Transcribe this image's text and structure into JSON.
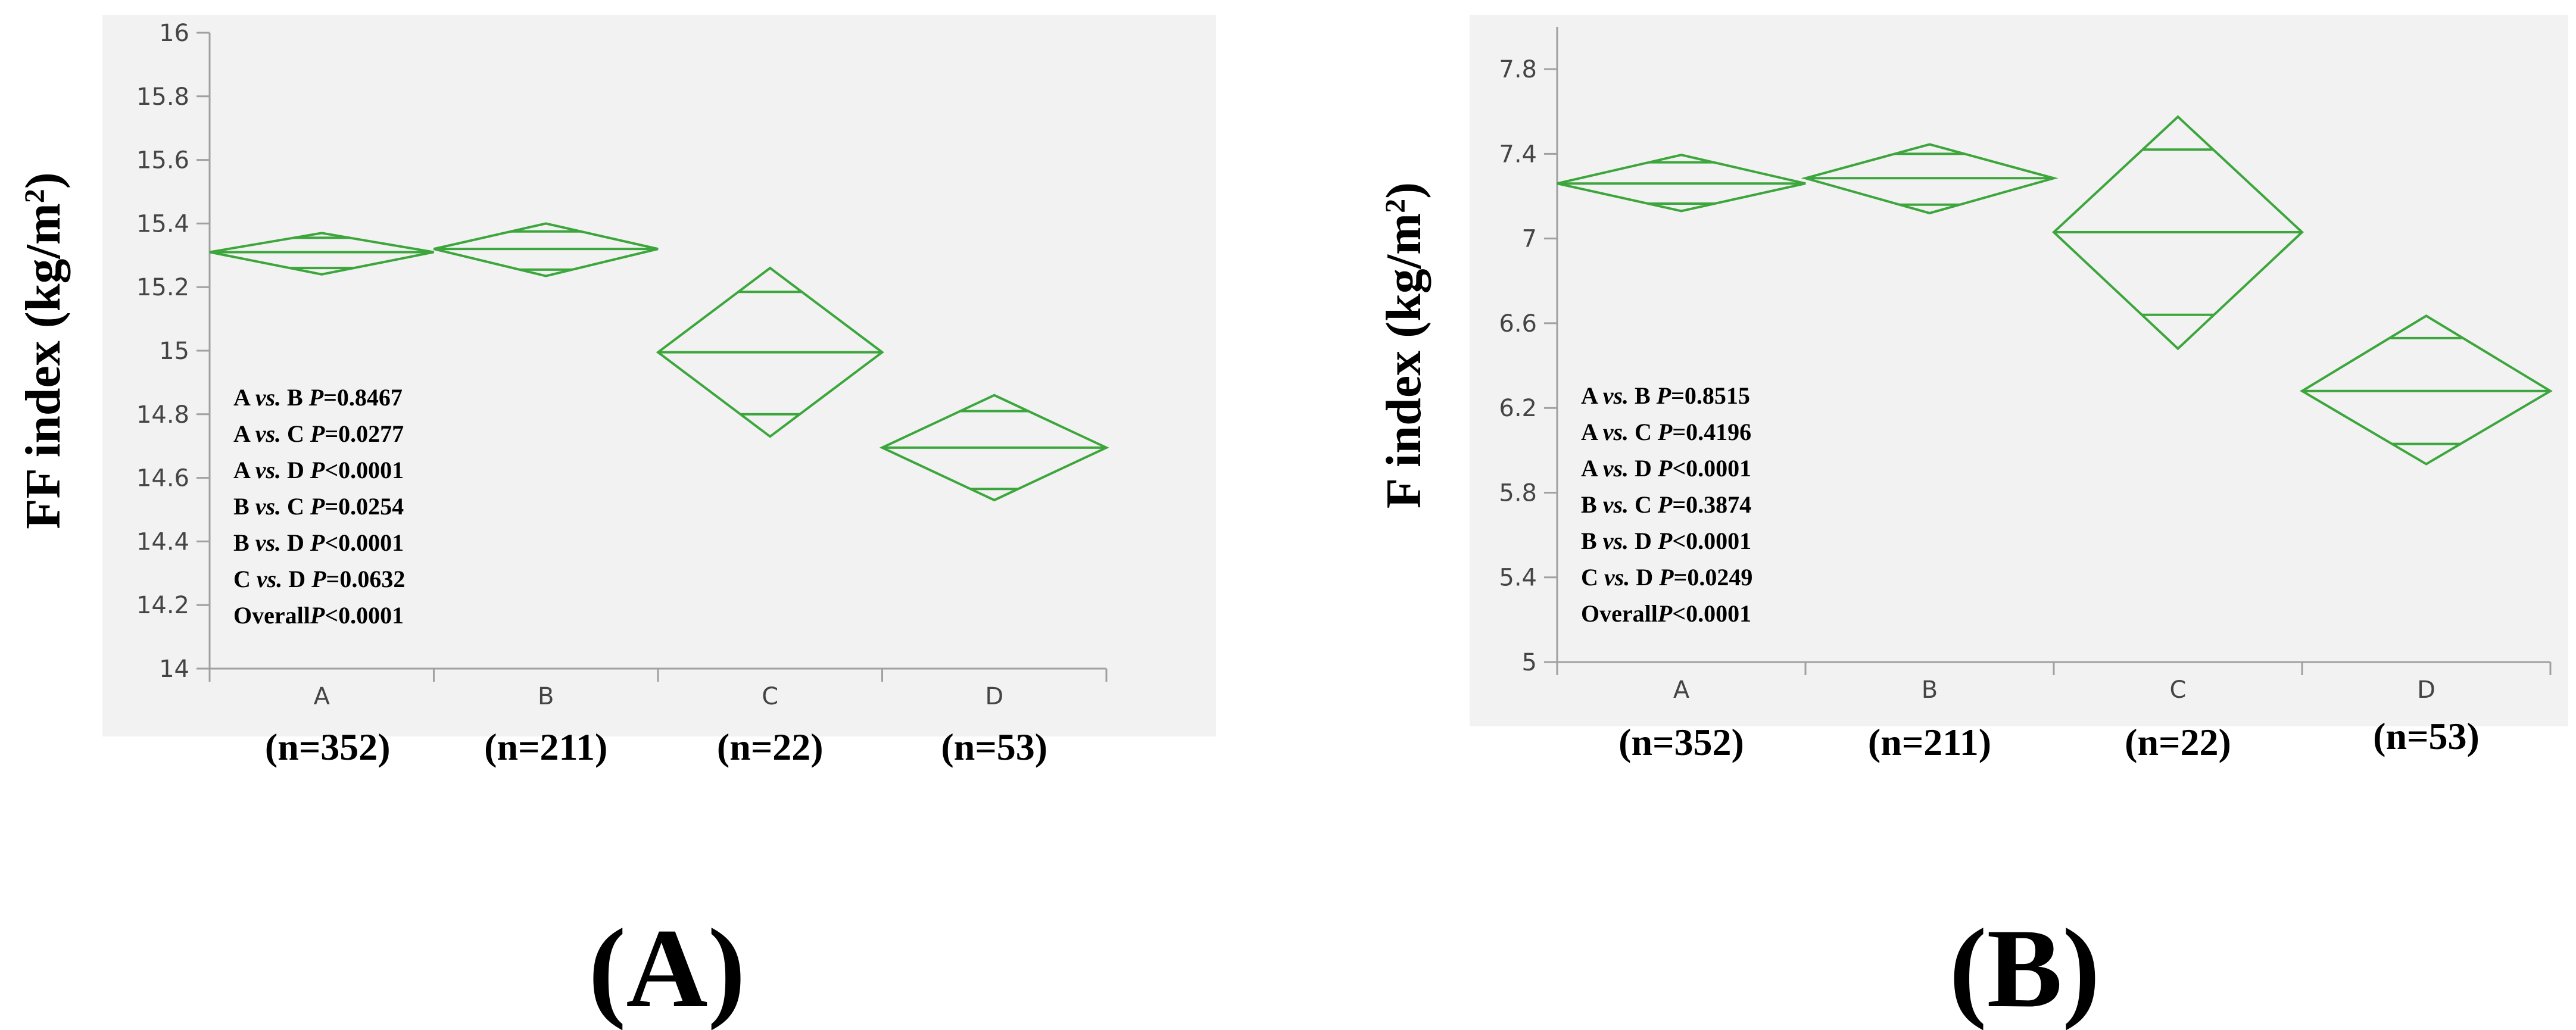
{
  "chart_data": [
    {
      "type": "diamond",
      "panel_label": "(A)",
      "ylabel_main": "FF index (kg/m",
      "ylabel_sup": "2",
      "ylabel_close": ")",
      "ylim": [
        14,
        16
      ],
      "yticks": [
        "14",
        "14.2",
        "14.4",
        "14.6",
        "14.8",
        "15",
        "15.2",
        "15.4",
        "15.6",
        "15.8",
        "16"
      ],
      "categories": [
        "A",
        "B",
        "C",
        "D"
      ],
      "n_labels": [
        "(n=352)",
        "(n=211)",
        "(n=22)",
        "(n=53)"
      ],
      "groups": [
        {
          "mean": 15.31,
          "ci_low": 15.24,
          "ci_high": 15.37,
          "inner_low": 15.26,
          "inner_high": 15.355
        },
        {
          "mean": 15.32,
          "ci_low": 15.235,
          "ci_high": 15.4,
          "inner_low": 15.255,
          "inner_high": 15.375
        },
        {
          "mean": 14.995,
          "ci_low": 14.73,
          "ci_high": 15.26,
          "inner_low": 14.8,
          "inner_high": 15.185
        },
        {
          "mean": 14.695,
          "ci_low": 14.53,
          "ci_high": 14.86,
          "inner_low": 14.565,
          "inner_high": 14.81
        }
      ],
      "comparisons": [
        {
          "pair": "A",
          "vs": "vs.",
          "pair2": "B",
          "p": "P",
          "val": "=0.8467"
        },
        {
          "pair": "A",
          "vs": "vs.",
          "pair2": "C",
          "p": "P",
          "val": "=0.0277"
        },
        {
          "pair": "A",
          "vs": "vs.",
          "pair2": "D",
          "p": "P",
          "val": "<0.0001"
        },
        {
          "pair": "B",
          "vs": "vs.",
          "pair2": "C",
          "p": "P",
          "val": "=0.0254"
        },
        {
          "pair": "B",
          "vs": "vs.",
          "pair2": "D",
          "p": "P",
          "val": "<0.0001"
        },
        {
          "pair": "C",
          "vs": "vs.",
          "pair2": "D",
          "p": "P",
          "val": "=0.0632"
        }
      ],
      "overall_prefix": "Overall",
      "overall_p": "P",
      "overall_val": "<0.0001"
    },
    {
      "type": "diamond",
      "panel_label": "(B)",
      "ylabel_main": "F index (kg/m",
      "ylabel_sup": "2",
      "ylabel_close": ")",
      "ylim": [
        5,
        8
      ],
      "yticks": [
        "5",
        "5.4",
        "5.8",
        "6.2",
        "6.6",
        "7",
        "7.4",
        "7.8"
      ],
      "categories": [
        "A",
        "B",
        "C",
        "D"
      ],
      "n_labels": [
        "(n=352)",
        "(n=211)",
        "(n=22)",
        "(n=53)"
      ],
      "groups": [
        {
          "mean": 7.26,
          "ci_low": 7.13,
          "ci_high": 7.395,
          "inner_low": 7.165,
          "inner_high": 7.36
        },
        {
          "mean": 7.285,
          "ci_low": 7.12,
          "ci_high": 7.445,
          "inner_low": 7.16,
          "inner_high": 7.4
        },
        {
          "mean": 7.03,
          "ci_low": 6.48,
          "ci_high": 7.575,
          "inner_low": 6.64,
          "inner_high": 7.42
        },
        {
          "mean": 6.28,
          "ci_low": 5.935,
          "ci_high": 6.635,
          "inner_low": 6.03,
          "inner_high": 6.53
        }
      ],
      "comparisons": [
        {
          "pair": "A",
          "vs": "vs.",
          "pair2": "B",
          "p": "P",
          "val": "=0.8515"
        },
        {
          "pair": "A",
          "vs": "vs.",
          "pair2": "C",
          "p": "P",
          "val": "=0.4196"
        },
        {
          "pair": "A",
          "vs": "vs.",
          "pair2": "D",
          "p": "P",
          "val": "<0.0001"
        },
        {
          "pair": "B",
          "vs": "vs.",
          "pair2": "C",
          "p": "P",
          "val": "=0.3874"
        },
        {
          "pair": "B",
          "vs": "vs.",
          "pair2": "D",
          "p": "P",
          "val": "<0.0001"
        },
        {
          "pair": "C",
          "vs": "vs.",
          "pair2": "D",
          "p": "P",
          "val": "=0.0249"
        }
      ],
      "overall_prefix": "Overall",
      "overall_p": "P",
      "overall_val": "<0.0001"
    }
  ]
}
